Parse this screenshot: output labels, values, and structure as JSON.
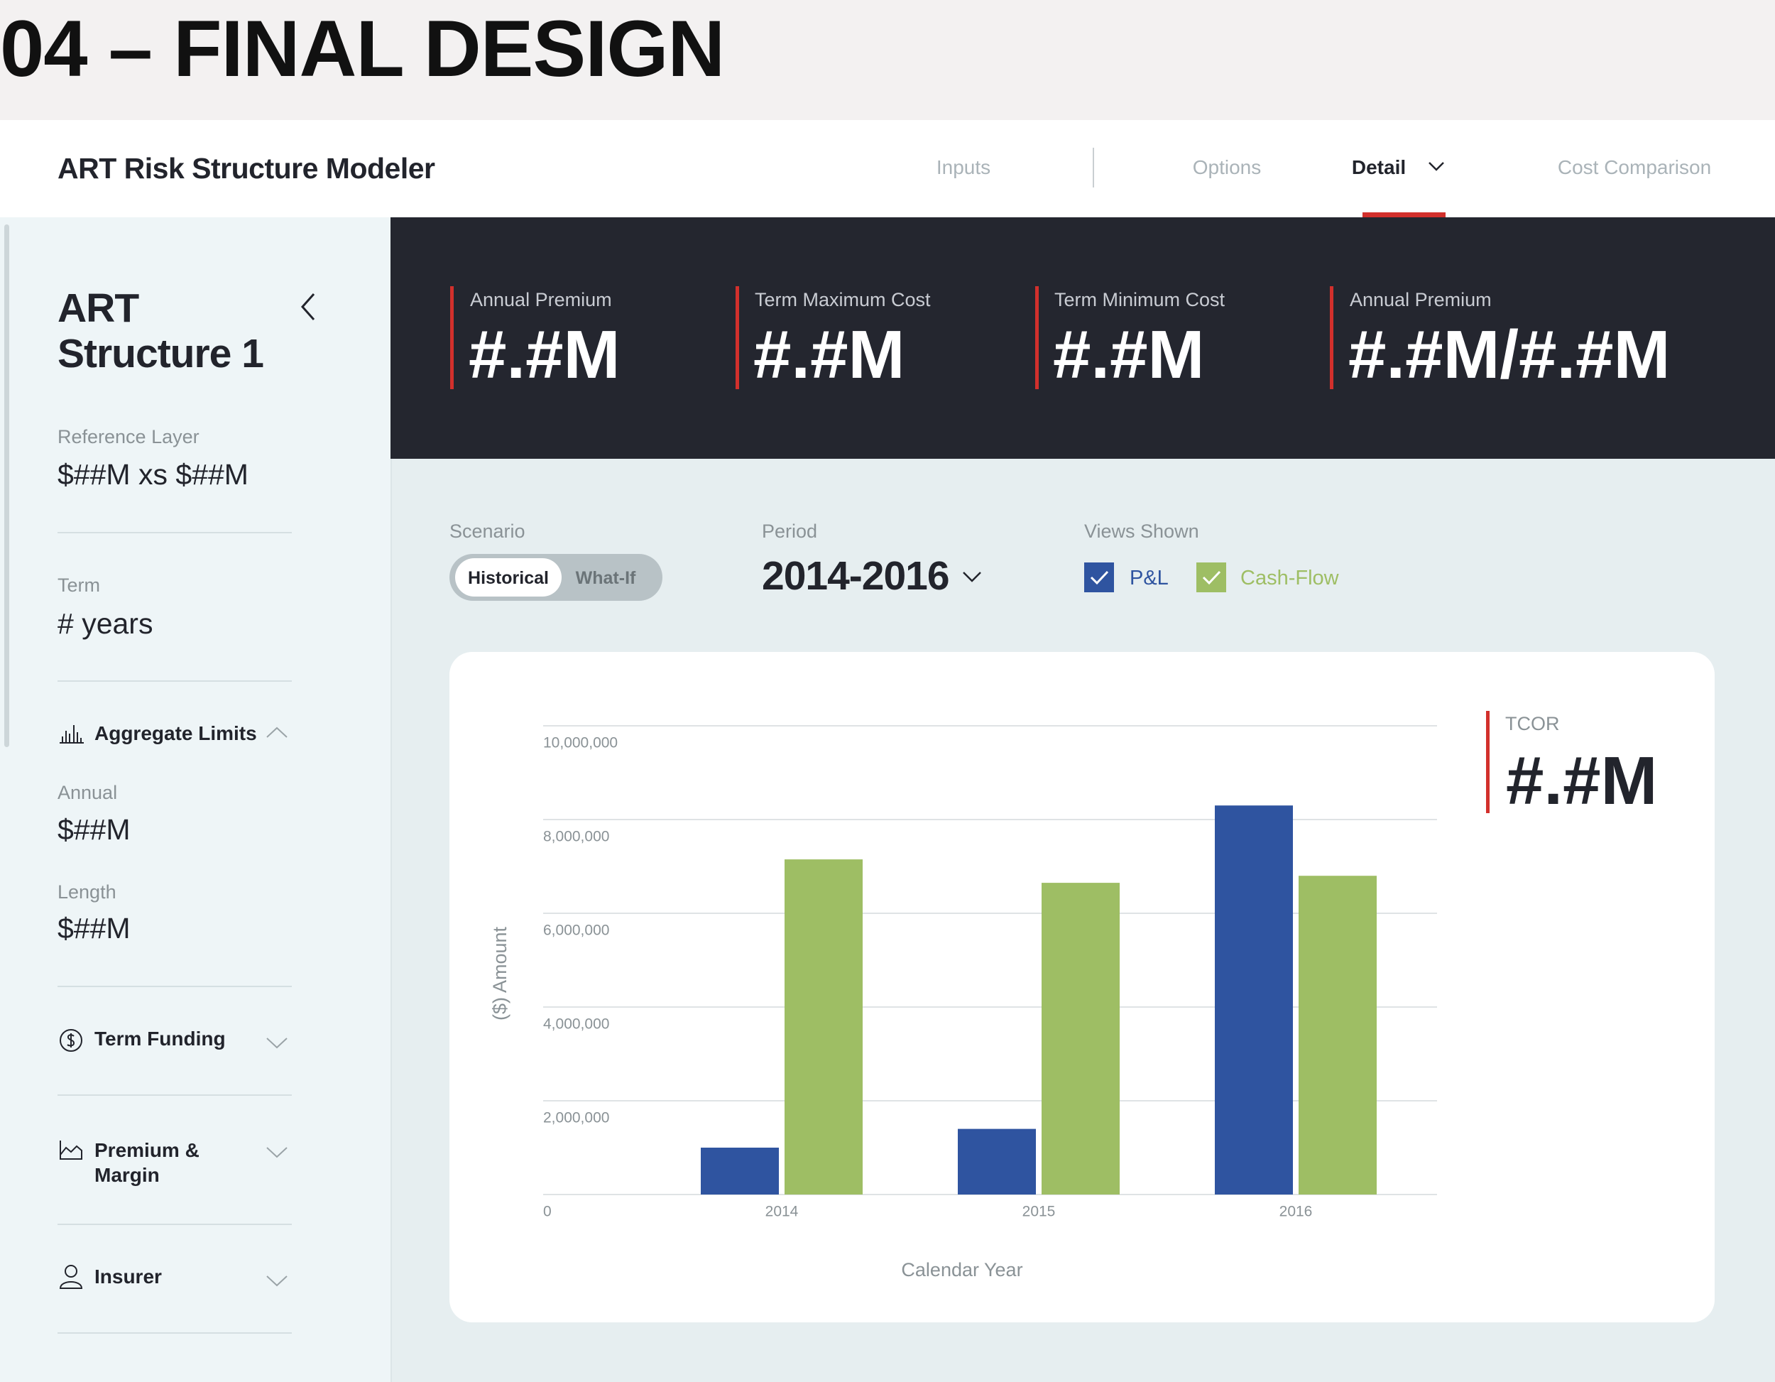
{
  "page_title": "04 – FINAL DESIGN",
  "app": {
    "title": "ART Risk Structure Modeler",
    "nav": [
      "Inputs",
      "Options",
      "Detail",
      "Cost Comparison"
    ]
  },
  "sidebar": {
    "title": "ART Structure 1",
    "reference_layer": {
      "label": "Reference Layer",
      "value": "$##M xs $##M"
    },
    "term": {
      "label": "Term",
      "value": "# years"
    },
    "sections": [
      {
        "title": "Aggregate Limits",
        "fields": [
          {
            "label": "Annual",
            "value": "$##M"
          },
          {
            "label": "Length",
            "value": "$##M"
          }
        ]
      },
      {
        "title": "Term Funding"
      },
      {
        "title": "Premium & Margin"
      },
      {
        "title": "Insurer"
      }
    ]
  },
  "kpis": [
    {
      "label": "Annual Premium",
      "value": "#.#M"
    },
    {
      "label": "Term Maximum Cost",
      "value": "#.#M"
    },
    {
      "label": "Term Minimum Cost",
      "value": "#.#M"
    },
    {
      "label": "Annual Premium",
      "value": "#.#M/#.#M"
    }
  ],
  "controls": {
    "scenario": {
      "label": "Scenario",
      "options": [
        "Historical",
        "What-If"
      ]
    },
    "period": {
      "label": "Period",
      "value": "2014-2016"
    },
    "views": {
      "label": "Views Shown"
    }
  },
  "tcor": {
    "label": "TCOR",
    "value": "#.#M"
  },
  "chart_data": {
    "type": "bar",
    "y_label": "($) Amount",
    "x_label": "Calendar Year",
    "categories": [
      "2014",
      "2015",
      "2016"
    ],
    "series": [
      {
        "name": "P&L",
        "color": "#2f54a0",
        "values": [
          1000000,
          1400000,
          8300000
        ]
      },
      {
        "name": "Cash-Flow",
        "color": "#9ebe64",
        "values": [
          7150000,
          6650000,
          6800000
        ]
      }
    ],
    "ylim": [
      0,
      10000000
    ],
    "yticks": [
      0,
      {
        "value": 2000000,
        "label": "2,000,000"
      },
      {
        "value": 4000000,
        "label": "4,000,000"
      },
      {
        "value": 6000000,
        "label": "6,000,000"
      },
      {
        "value": 8000000,
        "label": "8,000,000"
      },
      {
        "value": 10000000,
        "label": "10,000,000"
      }
    ],
    "grid": true
  }
}
